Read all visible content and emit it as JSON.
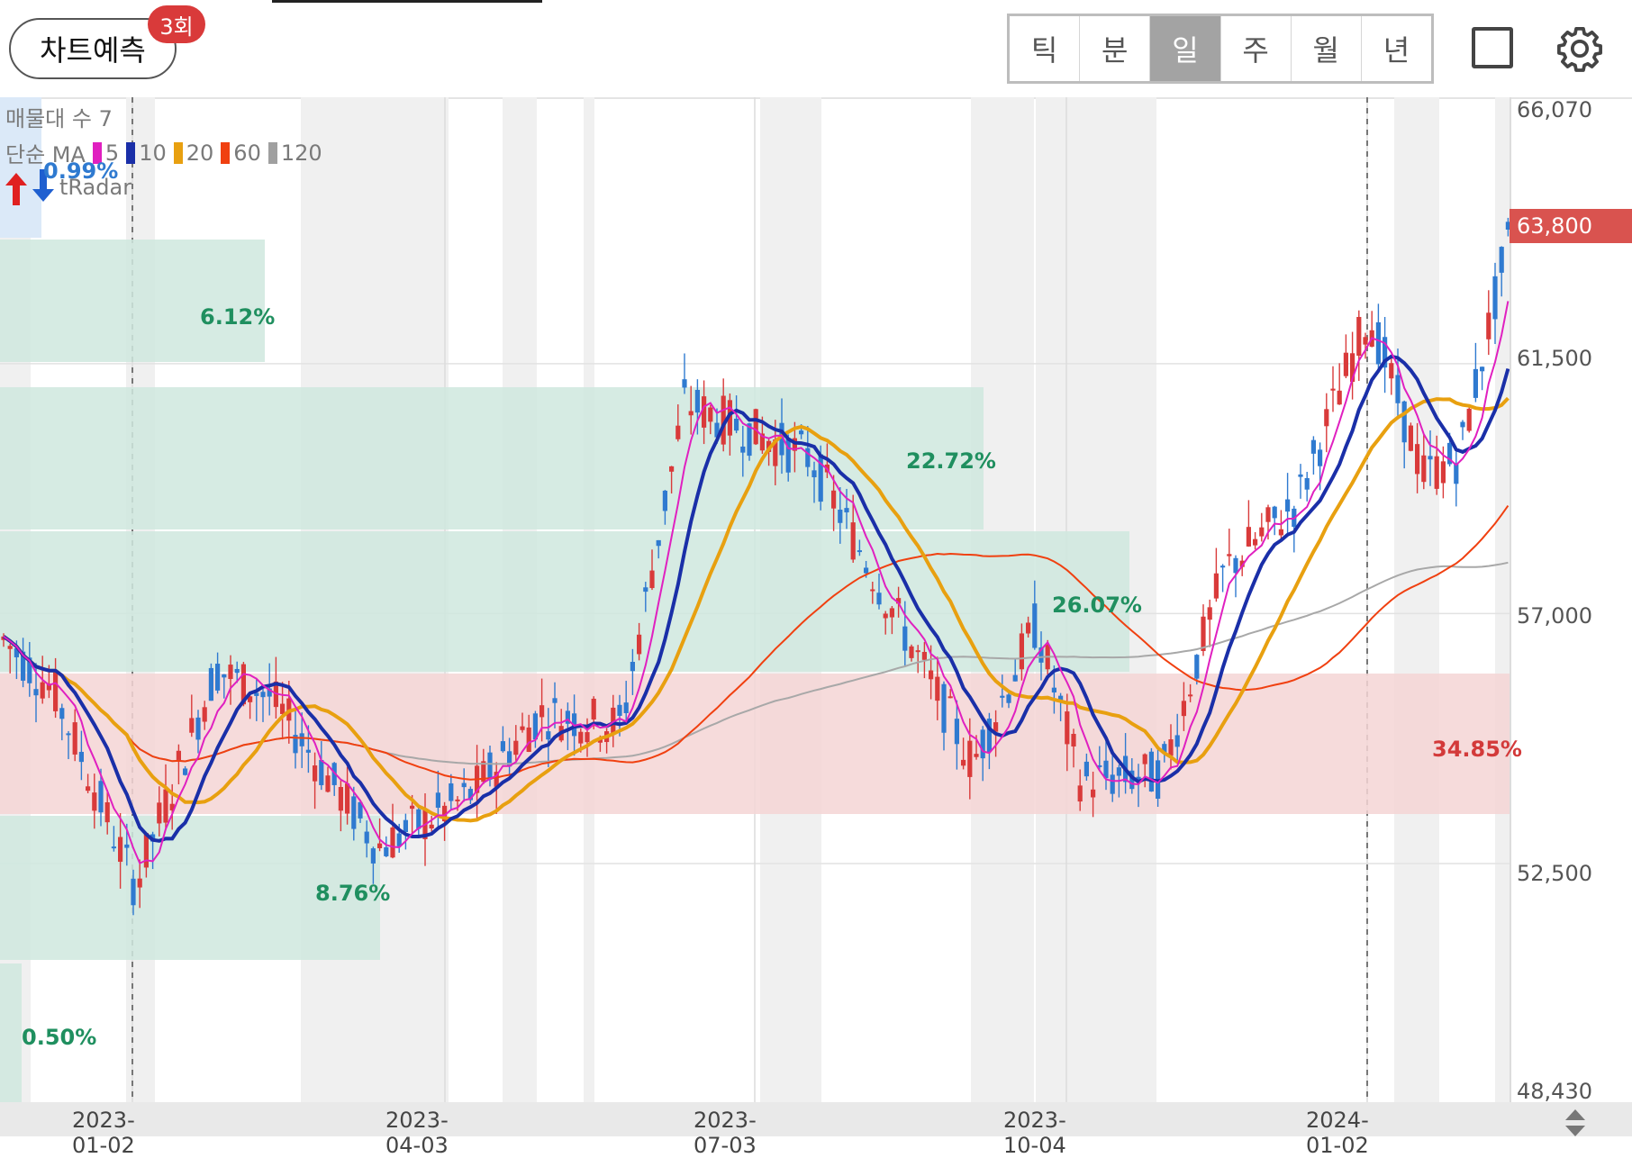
{
  "toolbar": {
    "predict_label": "차트예측",
    "predict_badge": "3회",
    "periods": [
      "틱",
      "분",
      "일",
      "주",
      "월",
      "년"
    ],
    "active_period": "일"
  },
  "legend": {
    "volume_profile": "매물대 수 7",
    "ma_prefix": "단순 MA",
    "ma_items": [
      {
        "label": "5",
        "color": "#e020c0"
      },
      {
        "label": "10",
        "color": "#1a2fa8"
      },
      {
        "label": "20",
        "color": "#e8a010"
      },
      {
        "label": "60",
        "color": "#f04010"
      },
      {
        "label": "120",
        "color": "#a0a0a0"
      }
    ],
    "tradar": "tRadar",
    "top_pct": "0.99%"
  },
  "price_axis": [
    "66,070",
    "61,500",
    "57,000",
    "52,500",
    "48,430"
  ],
  "current_price": "63,800",
  "date_axis": [
    "2023-01-02",
    "2023-04-03",
    "2023-07-03",
    "2023-10-04",
    "2024-01-02"
  ],
  "volume_profile_pcts": [
    "6.12%",
    "22.72%",
    "26.07%",
    "34.85%",
    "8.76%",
    "0.50%"
  ],
  "colors": {
    "up": "#d93a3a",
    "down": "#2f7ad0",
    "profile_green": "#cfe8de",
    "profile_red": "#f5d5d5",
    "pct_green": "#1f8f5f",
    "pct_red": "#d33a3a"
  }
}
